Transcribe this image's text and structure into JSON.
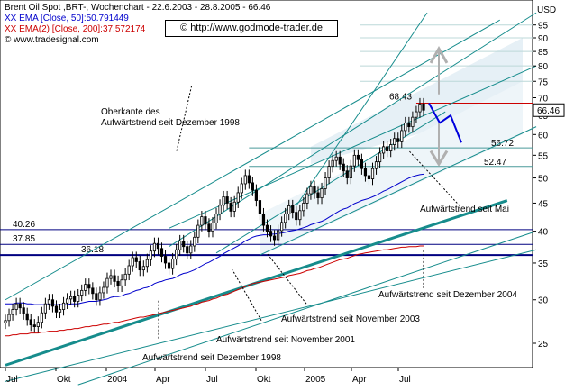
{
  "header": {
    "title": "Brent Oil Spot ,BRT-, Wochenchart - 22.6.2003 - 28.8.2005 - 66.46",
    "ema50": "EMA [Close, 50]:50.791449",
    "ema200": "EMA(2) [Close, 200]:37.572174",
    "source": "© www.tradesignal.com",
    "url": "© http://www.godmode-trader.de",
    "ema50_color": "#0000cc",
    "ema200_color": "#cc0000"
  },
  "chart_data": {
    "type": "candlestick",
    "y_unit": "USD",
    "y_scale": "log",
    "ylim": [
      22,
      100
    ],
    "y_ticks": [
      25,
      30,
      35,
      40,
      45,
      50,
      55,
      60,
      65,
      70,
      75,
      80,
      85,
      90,
      95
    ],
    "x_ticks": [
      "Jul",
      "Okt",
      "2004",
      "Apr",
      "Jul",
      "Okt",
      "2005",
      "Apr",
      "Jul"
    ],
    "last_price": "66.46",
    "levels": [
      {
        "label": "40.26",
        "value": 40.26
      },
      {
        "label": "37.85",
        "value": 37.85
      },
      {
        "label": "36.18",
        "value": 36.18
      },
      {
        "label": "56.72",
        "value": 56.72
      },
      {
        "label": "52.47",
        "value": 52.47
      },
      {
        "label": "68,43",
        "value": 68.43
      }
    ],
    "annotations": [
      "Oberkante des Aufwärtstrend seit Dezember 1998",
      "Aufwärtstrend seit Mai",
      "Aufwärtstrend seit Dezember 2004",
      "Aufwärtstrend seit November 2003",
      "Aufwärtstrend seit November 2001",
      "Aufwärtstrend seit Dezember 1998"
    ],
    "weekly_close": [
      27.5,
      28.2,
      28.8,
      29.5,
      29.0,
      28.3,
      27.6,
      27.0,
      26.8,
      27.3,
      28.4,
      29.5,
      30.0,
      29.2,
      28.5,
      28.8,
      29.6,
      30.1,
      30.4,
      29.8,
      30.6,
      31.2,
      32.0,
      31.5,
      30.8,
      30.0,
      30.9,
      31.6,
      32.8,
      33.2,
      32.4,
      31.8,
      32.6,
      33.4,
      34.6,
      35.8,
      35.2,
      34.0,
      34.5,
      35.5,
      36.8,
      38.0,
      37.2,
      36.0,
      35.0,
      34.2,
      35.6,
      37.0,
      38.4,
      37.5,
      36.5,
      37.6,
      39.0,
      41.0,
      42.5,
      41.2,
      40.0,
      41.4,
      43.0,
      44.6,
      46.2,
      45.0,
      43.5,
      45.2,
      47.0,
      48.8,
      50.5,
      49.0,
      47.5,
      45.5,
      43.0,
      41.0,
      40.0,
      39.2,
      38.6,
      40.1,
      41.5,
      43.0,
      44.5,
      43.3,
      42.0,
      43.6,
      45.0,
      46.8,
      48.2,
      47.0,
      46.0,
      47.8,
      50.0,
      52.5,
      53.8,
      54.6,
      53.0,
      51.5,
      50.0,
      52.6,
      55.0,
      54.0,
      52.0,
      50.5,
      49.8,
      52.0,
      53.5,
      55.5,
      57.0,
      56.0,
      57.5,
      59.0,
      58.2,
      61.0,
      63.0,
      62.0,
      64.5,
      66.0,
      68.2,
      66.46
    ],
    "ema50": [
      29.5,
      29.5,
      29.5,
      29.6,
      29.6,
      29.6,
      29.5,
      29.5,
      29.4,
      29.4,
      29.4,
      29.4,
      29.4,
      29.4,
      29.4,
      29.4,
      29.4,
      29.4,
      29.5,
      29.5,
      29.5,
      29.6,
      29.7,
      29.8,
      29.8,
      29.8,
      29.9,
      30.0,
      30.1,
      30.3,
      30.4,
      30.4,
      30.5,
      30.7,
      30.8,
      31.0,
      31.2,
      31.3,
      31.5,
      31.6,
      31.8,
      32.1,
      32.3,
      32.4,
      32.6,
      32.7,
      32.8,
      33.0,
      33.3,
      33.5,
      33.6,
      33.8,
      34.0,
      34.3,
      34.6,
      34.9,
      35.1,
      35.4,
      35.7,
      36.0,
      36.4,
      36.7,
      37.0,
      37.3,
      37.6,
      38.0,
      38.4,
      38.7,
      39.0,
      39.2,
      39.3,
      39.4,
      39.4,
      39.5,
      39.5,
      39.6,
      39.7,
      39.8,
      40.0,
      40.1,
      40.2,
      40.4,
      40.6,
      40.8,
      41.1,
      41.3,
      41.5,
      41.7,
      42.0,
      42.4,
      42.8,
      43.2,
      43.6,
      43.9,
      44.1,
      44.5,
      44.9,
      45.2,
      45.5,
      45.7,
      45.9,
      46.2,
      46.5,
      46.9,
      47.3,
      47.6,
      48.0,
      48.4,
      48.8,
      49.2,
      49.6,
      50.0,
      50.3,
      50.5,
      50.7,
      50.8
    ],
    "ema200": [
      25.8,
      25.8,
      25.9,
      25.9,
      26.0,
      26.0,
      26.0,
      26.1,
      26.1,
      26.1,
      26.2,
      26.2,
      26.3,
      26.3,
      26.3,
      26.4,
      26.4,
      26.5,
      26.5,
      26.6,
      26.6,
      26.7,
      26.8,
      26.8,
      26.9,
      26.9,
      27.0,
      27.1,
      27.1,
      27.2,
      27.3,
      27.3,
      27.4,
      27.5,
      27.6,
      27.7,
      27.8,
      27.9,
      27.9,
      28.0,
      28.1,
      28.2,
      28.3,
      28.4,
      28.5,
      28.6,
      28.7,
      28.8,
      28.9,
      29.0,
      29.1,
      29.2,
      29.4,
      29.5,
      29.7,
      29.8,
      29.9,
      30.1,
      30.2,
      30.4,
      30.6,
      30.7,
      30.9,
      31.1,
      31.3,
      31.5,
      31.7,
      31.9,
      32.1,
      32.2,
      32.3,
      32.4,
      32.5,
      32.6,
      32.7,
      32.8,
      32.9,
      33.0,
      33.2,
      33.3,
      33.4,
      33.5,
      33.7,
      33.9,
      34.0,
      34.2,
      34.3,
      34.5,
      34.7,
      34.9,
      35.1,
      35.3,
      35.5,
      35.6,
      35.7,
      35.9,
      36.1,
      36.3,
      36.4,
      36.5,
      36.6,
      36.7,
      36.8,
      36.9,
      37.0,
      37.0,
      37.1,
      37.2,
      37.3,
      37.4,
      37.4,
      37.5,
      37.5,
      37.5,
      37.6,
      37.6
    ],
    "projection": [
      68.43,
      63.0,
      65.0,
      58.0
    ],
    "projection_color": "#0000dd"
  }
}
